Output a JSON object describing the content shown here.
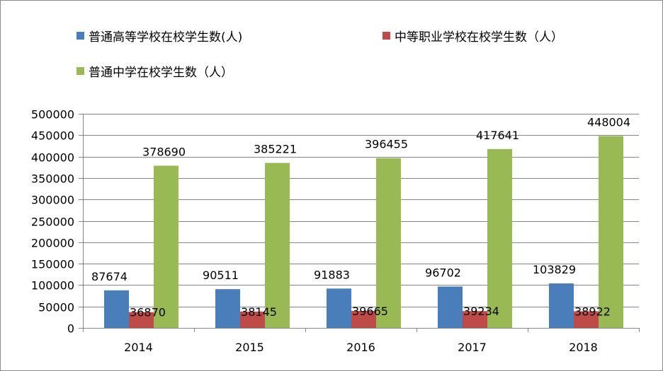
{
  "chart_data": {
    "type": "bar",
    "categories": [
      "2014",
      "2015",
      "2016",
      "2017",
      "2018"
    ],
    "series": [
      {
        "name": "普通高等学校在校学生数(人)",
        "color": "#4a7ebb",
        "values": [
          87674,
          90511,
          91883,
          96702,
          103829
        ]
      },
      {
        "name": "中等职业学校在校学生数（人）",
        "color": "#be4b48",
        "values": [
          36870,
          38145,
          39665,
          39234,
          38922
        ]
      },
      {
        "name": "普通中学在校学生数（人）",
        "color": "#98b954",
        "values": [
          378690,
          385221,
          396455,
          417641,
          448004
        ]
      }
    ],
    "ylim": [
      0,
      500000
    ],
    "yticks": [
      "0",
      "50000",
      "100000",
      "150000",
      "200000",
      "250000",
      "300000",
      "350000",
      "400000",
      "450000",
      "500000"
    ],
    "grid": true,
    "legend_position": "top"
  }
}
